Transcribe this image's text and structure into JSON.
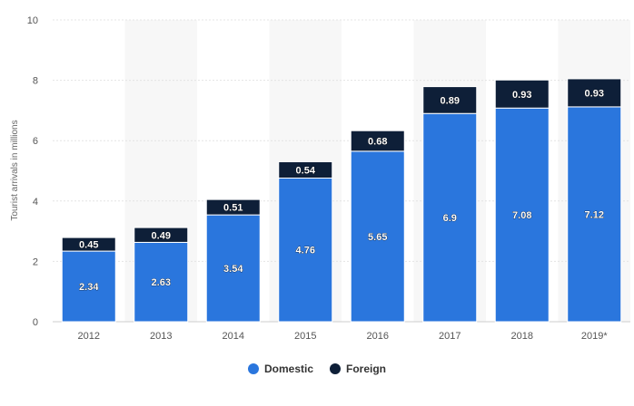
{
  "chart_data": {
    "type": "bar",
    "stacked": true,
    "categories": [
      "2012",
      "2013",
      "2014",
      "2015",
      "2016",
      "2017",
      "2018",
      "2019*"
    ],
    "series": [
      {
        "name": "Domestic",
        "color": "#2a76dd",
        "values": [
          2.34,
          2.63,
          3.54,
          4.76,
          5.65,
          6.9,
          7.08,
          7.12
        ]
      },
      {
        "name": "Foreign",
        "color": "#0e1f38",
        "values": [
          0.45,
          0.49,
          0.51,
          0.54,
          0.68,
          0.89,
          0.93,
          0.93
        ]
      }
    ],
    "ylabel": "Tourist arrivals in millions",
    "ylim": [
      0,
      10
    ],
    "yticks": [
      0,
      2,
      4,
      6,
      8,
      10
    ],
    "grid": true,
    "legend_position": "bottom-center"
  }
}
